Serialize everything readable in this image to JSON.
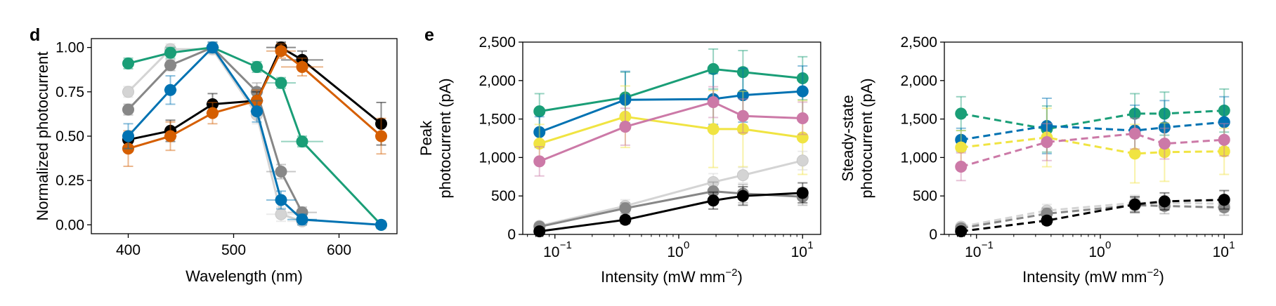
{
  "panel_labels": [
    "d",
    "e"
  ],
  "chart_data": [
    {
      "type": "line",
      "panel": "d",
      "xlabel": "Wavelength (nm)",
      "ylabel": "Normalized photocurrent",
      "xlim": [
        365,
        655
      ],
      "ylim": [
        -0.05,
        1.05
      ],
      "xticks": [
        400,
        500,
        600
      ],
      "xtick_labels": [
        "400",
        "500",
        "600"
      ],
      "yticks": [
        0,
        0.25,
        0.5,
        0.75,
        1.0
      ],
      "ytick_labels": [
        "0.00",
        "0.25",
        "0.50",
        "0.75",
        "1.00"
      ],
      "grid": false,
      "legend": "none",
      "series": [
        {
          "color": "#d4d4d4",
          "dash": false,
          "x": [
            400,
            440,
            480,
            522,
            545,
            565
          ],
          "y": [
            0.75,
            0.99,
            0.99,
            0.62,
            0.06,
            0.02
          ],
          "xerr": [
            0,
            6,
            6,
            6,
            14,
            14
          ],
          "yerr": [
            0.03,
            0.03,
            0.03,
            0.05,
            0.04,
            0.02
          ]
        },
        {
          "color": "#878787",
          "dash": false,
          "x": [
            400,
            440,
            480,
            522,
            545,
            565
          ],
          "y": [
            0.65,
            0.9,
            1.0,
            0.75,
            0.3,
            0.07
          ],
          "xerr": [
            0,
            6,
            6,
            6,
            14,
            14
          ],
          "yerr": [
            0.03,
            0.03,
            0.03,
            0.05,
            0.04,
            0.03
          ]
        },
        {
          "color": "#000000",
          "dash": false,
          "x": [
            400,
            440,
            480,
            522,
            545,
            565,
            640
          ],
          "y": [
            0.48,
            0.53,
            0.68,
            0.7,
            1.0,
            0.93,
            0.57
          ],
          "xerr": [
            0,
            6,
            6,
            6,
            14,
            20,
            0
          ],
          "yerr": [
            0.04,
            0.06,
            0.06,
            0.05,
            0.03,
            0.05,
            0.12
          ]
        },
        {
          "color": "#d55e00",
          "dash": false,
          "x": [
            400,
            440,
            480,
            522,
            545,
            565,
            640
          ],
          "y": [
            0.43,
            0.5,
            0.63,
            0.7,
            0.98,
            0.89,
            0.5
          ],
          "xerr": [
            0,
            6,
            6,
            6,
            14,
            20,
            0
          ],
          "yerr": [
            0.1,
            0.08,
            0.06,
            0.06,
            0.04,
            0.05,
            0.1
          ]
        },
        {
          "color": "#1a9e77",
          "dash": false,
          "x": [
            400,
            440,
            480,
            522,
            545,
            565,
            640
          ],
          "y": [
            0.91,
            0.97,
            1.0,
            0.89,
            0.8,
            0.47,
            0.0
          ],
          "xerr": [
            0,
            6,
            6,
            6,
            14,
            20,
            0
          ],
          "yerr": [
            0.03,
            0.03,
            0.02,
            0.03,
            0.03,
            0.03,
            0.02
          ]
        },
        {
          "color": "#0072b2",
          "dash": false,
          "x": [
            400,
            440,
            480,
            522,
            545,
            565,
            640
          ],
          "y": [
            0.5,
            0.76,
            1.0,
            0.64,
            0.14,
            0.03,
            0.0
          ],
          "xerr": [
            0,
            6,
            6,
            6,
            14,
            14,
            0
          ],
          "yerr": [
            0.07,
            0.08,
            0.03,
            0.06,
            0.05,
            0.03,
            0.02
          ]
        }
      ]
    },
    {
      "type": "line",
      "panel": "e-left",
      "xlabel": "Intensity (mW mm",
      "xlabel_sup": "−2",
      "xlabel_close": ")",
      "ylabel_lines": [
        "Peak",
        "photocurrent (pA)"
      ],
      "xscale": "log",
      "xlim": [
        0.055,
        14
      ],
      "ylim": [
        0,
        2500
      ],
      "xticks": [
        0.1,
        1,
        10
      ],
      "xtick_bases": [
        "10",
        "10",
        "10"
      ],
      "xtick_exps": [
        "−1",
        "0",
        "1"
      ],
      "yticks": [
        0,
        500,
        1000,
        1500,
        2000,
        2500
      ],
      "ytick_labels": [
        "0",
        "500",
        "1,000",
        "1,500",
        "2,000",
        "2,500"
      ],
      "grid": false,
      "legend": "none",
      "series": [
        {
          "color": "#1a9e77",
          "dash": false,
          "x": [
            0.075,
            0.37,
            1.9,
            3.3,
            10
          ],
          "y": [
            1600,
            1780,
            2150,
            2110,
            2030
          ],
          "yerr": [
            230,
            330,
            260,
            280,
            280
          ]
        },
        {
          "color": "#0072b2",
          "dash": false,
          "x": [
            0.075,
            0.37,
            1.9,
            3.3,
            10
          ],
          "y": [
            1330,
            1750,
            1760,
            1810,
            1860
          ],
          "yerr": [
            200,
            370,
            330,
            350,
            330
          ]
        },
        {
          "color": "#f0e442",
          "dash": false,
          "x": [
            0.075,
            0.37,
            1.9,
            3.3,
            10
          ],
          "y": [
            1180,
            1530,
            1370,
            1370,
            1260
          ],
          "yerr": [
            250,
            400,
            500,
            490,
            480
          ]
        },
        {
          "color": "#cc79a7",
          "dash": false,
          "x": [
            0.075,
            0.37,
            1.9,
            3.3,
            10
          ],
          "y": [
            950,
            1400,
            1720,
            1540,
            1510
          ],
          "yerr": [
            190,
            240,
            200,
            220,
            210
          ]
        },
        {
          "color": "#d4d4d4",
          "dash": false,
          "x": [
            0.075,
            0.37,
            1.9,
            3.3,
            10
          ],
          "y": [
            110,
            370,
            680,
            770,
            960
          ],
          "yerr": [
            40,
            80,
            110,
            100,
            120
          ]
        },
        {
          "color": "#878787",
          "dash": false,
          "x": [
            0.075,
            0.37,
            1.9,
            3.3,
            10
          ],
          "y": [
            100,
            340,
            560,
            530,
            490
          ],
          "yerr": [
            40,
            70,
            120,
            120,
            110
          ]
        },
        {
          "color": "#000000",
          "dash": false,
          "x": [
            0.075,
            0.37,
            1.9,
            3.3,
            10
          ],
          "y": [
            40,
            190,
            440,
            500,
            540
          ],
          "yerr": [
            20,
            50,
            110,
            120,
            130
          ]
        }
      ]
    },
    {
      "type": "line",
      "panel": "e-right",
      "xlabel": "Intensity (mW mm",
      "xlabel_sup": "−2",
      "xlabel_close": ")",
      "ylabel_lines": [
        "Steady-state",
        "photocurrent (pA)"
      ],
      "xscale": "log",
      "xlim": [
        0.055,
        14
      ],
      "ylim": [
        0,
        2500
      ],
      "xticks": [
        0.1,
        1,
        10
      ],
      "xtick_bases": [
        "10",
        "10",
        "10"
      ],
      "xtick_exps": [
        "−1",
        "0",
        "1"
      ],
      "yticks": [
        0,
        500,
        1000,
        1500,
        2000,
        2500
      ],
      "ytick_labels": [
        "0",
        "500",
        "1,000",
        "1,500",
        "2,000",
        "2,500"
      ],
      "grid": false,
      "legend": "none",
      "series": [
        {
          "color": "#1a9e77",
          "dash": true,
          "x": [
            0.075,
            0.37,
            1.9,
            3.3,
            10
          ],
          "y": [
            1570,
            1370,
            1570,
            1570,
            1610
          ],
          "yerr": [
            220,
            300,
            260,
            280,
            280
          ]
        },
        {
          "color": "#0072b2",
          "dash": true,
          "x": [
            0.075,
            0.37,
            1.9,
            3.3,
            10
          ],
          "y": [
            1230,
            1410,
            1350,
            1390,
            1460
          ],
          "yerr": [
            150,
            360,
            330,
            350,
            330
          ]
        },
        {
          "color": "#f0e442",
          "dash": true,
          "x": [
            0.075,
            0.37,
            1.9,
            3.3,
            10
          ],
          "y": [
            1130,
            1260,
            1050,
            1070,
            1080
          ],
          "yerr": [
            220,
            380,
            380,
            380,
            300
          ]
        },
        {
          "color": "#cc79a7",
          "dash": true,
          "x": [
            0.075,
            0.37,
            1.9,
            3.3,
            10
          ],
          "y": [
            880,
            1200,
            1310,
            1180,
            1230
          ],
          "yerr": [
            180,
            240,
            200,
            200,
            210
          ]
        },
        {
          "color": "#d4d4d4",
          "dash": true,
          "x": [
            0.075,
            0.37,
            1.9,
            3.3,
            10
          ],
          "y": [
            100,
            310,
            410,
            410,
            400
          ],
          "yerr": [
            40,
            80,
            100,
            100,
            110
          ]
        },
        {
          "color": "#878787",
          "dash": true,
          "x": [
            0.075,
            0.37,
            1.9,
            3.3,
            10
          ],
          "y": [
            80,
            270,
            380,
            370,
            350
          ],
          "yerr": [
            40,
            70,
            100,
            100,
            100
          ]
        },
        {
          "color": "#000000",
          "dash": true,
          "x": [
            0.075,
            0.37,
            1.9,
            3.3,
            10
          ],
          "y": [
            40,
            180,
            390,
            430,
            450
          ],
          "yerr": [
            20,
            50,
            100,
            110,
            120
          ]
        }
      ]
    }
  ]
}
